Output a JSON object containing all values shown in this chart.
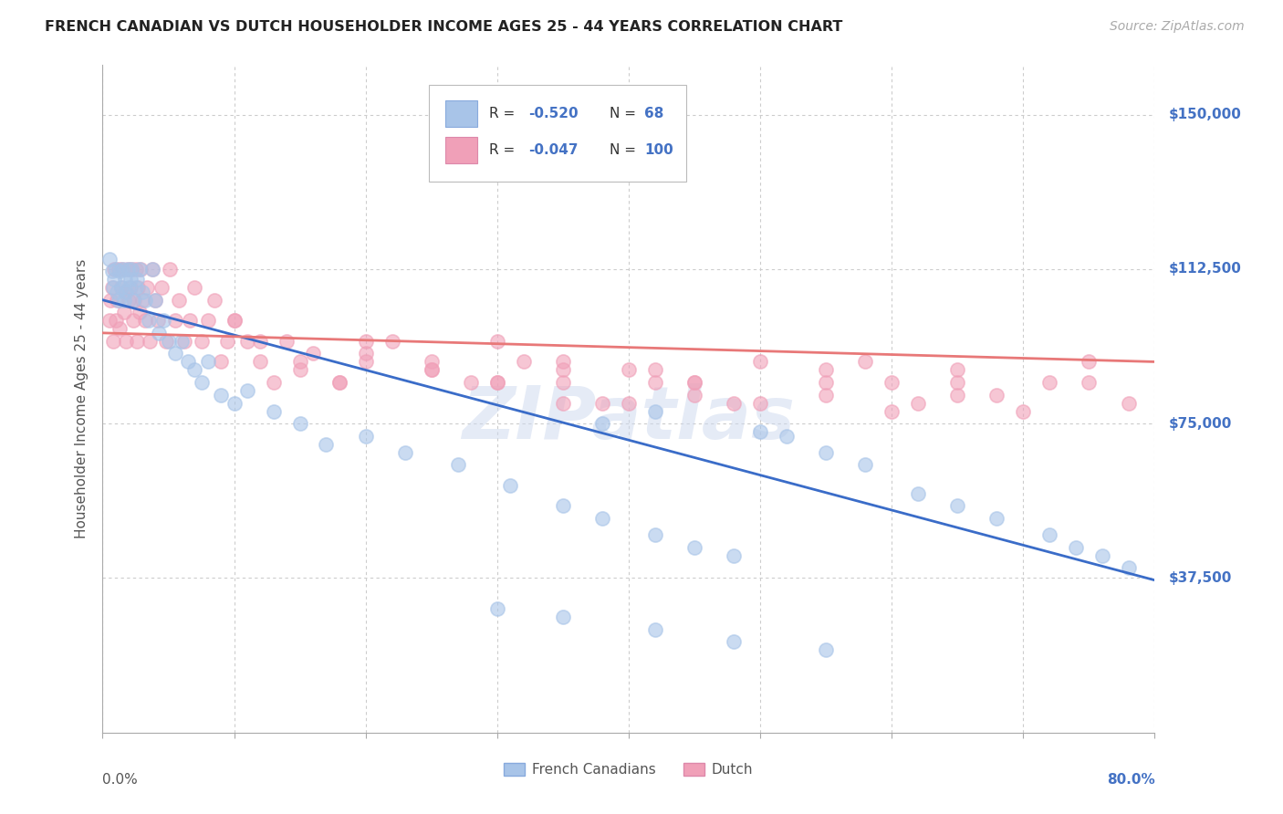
{
  "title": "FRENCH CANADIAN VS DUTCH HOUSEHOLDER INCOME AGES 25 - 44 YEARS CORRELATION CHART",
  "source": "Source: ZipAtlas.com",
  "ylabel": "Householder Income Ages 25 - 44 years",
  "ytick_labels": [
    "$37,500",
    "$75,000",
    "$112,500",
    "$150,000"
  ],
  "ytick_values": [
    37500,
    75000,
    112500,
    150000
  ],
  "xlim": [
    0.0,
    0.8
  ],
  "ylim": [
    0,
    162000
  ],
  "legend_R1": "-0.520",
  "legend_N1": "68",
  "legend_R2": "-0.047",
  "legend_N2": "100",
  "series1_label": "French Canadians",
  "series2_label": "Dutch",
  "series1_color": "#a8c4e8",
  "series2_color": "#f0a0b8",
  "line1_color": "#3a6cc8",
  "line2_color": "#e87878",
  "background_color": "#ffffff",
  "french_x": [
    0.005,
    0.007,
    0.008,
    0.009,
    0.01,
    0.011,
    0.012,
    0.013,
    0.014,
    0.015,
    0.016,
    0.017,
    0.018,
    0.019,
    0.02,
    0.021,
    0.022,
    0.023,
    0.025,
    0.026,
    0.028,
    0.03,
    0.032,
    0.035,
    0.038,
    0.04,
    0.043,
    0.046,
    0.05,
    0.055,
    0.06,
    0.065,
    0.07,
    0.075,
    0.08,
    0.09,
    0.1,
    0.11,
    0.13,
    0.15,
    0.17,
    0.2,
    0.23,
    0.27,
    0.31,
    0.35,
    0.38,
    0.42,
    0.45,
    0.48,
    0.38,
    0.42,
    0.5,
    0.52,
    0.55,
    0.58,
    0.62,
    0.65,
    0.68,
    0.72,
    0.74,
    0.76,
    0.78,
    0.3,
    0.35,
    0.42,
    0.48,
    0.55
  ],
  "french_y": [
    115000,
    112000,
    108000,
    110000,
    112500,
    107000,
    105000,
    112000,
    108000,
    112500,
    105000,
    110000,
    107000,
    112500,
    108000,
    110000,
    112500,
    105000,
    108000,
    110000,
    112500,
    107000,
    105000,
    100000,
    112500,
    105000,
    97000,
    100000,
    95000,
    92000,
    95000,
    90000,
    88000,
    85000,
    90000,
    82000,
    80000,
    83000,
    78000,
    75000,
    70000,
    72000,
    68000,
    65000,
    60000,
    55000,
    52000,
    48000,
    45000,
    43000,
    75000,
    78000,
    73000,
    72000,
    68000,
    65000,
    58000,
    55000,
    52000,
    48000,
    45000,
    43000,
    40000,
    30000,
    28000,
    25000,
    22000,
    20000
  ],
  "dutch_x": [
    0.005,
    0.006,
    0.007,
    0.008,
    0.009,
    0.01,
    0.011,
    0.012,
    0.013,
    0.014,
    0.015,
    0.016,
    0.017,
    0.018,
    0.019,
    0.02,
    0.021,
    0.022,
    0.023,
    0.024,
    0.025,
    0.026,
    0.027,
    0.028,
    0.029,
    0.03,
    0.032,
    0.034,
    0.036,
    0.038,
    0.04,
    0.042,
    0.045,
    0.048,
    0.051,
    0.055,
    0.058,
    0.062,
    0.066,
    0.07,
    0.075,
    0.08,
    0.085,
    0.09,
    0.095,
    0.1,
    0.11,
    0.12,
    0.13,
    0.14,
    0.15,
    0.16,
    0.18,
    0.2,
    0.22,
    0.25,
    0.28,
    0.32,
    0.35,
    0.38,
    0.42,
    0.45,
    0.5,
    0.55,
    0.58,
    0.62,
    0.65,
    0.68,
    0.72,
    0.75,
    0.78,
    0.3,
    0.35,
    0.42,
    0.48,
    0.55,
    0.6,
    0.65,
    0.7,
    0.75,
    0.2,
    0.25,
    0.3,
    0.35,
    0.4,
    0.45,
    0.5,
    0.55,
    0.6,
    0.65,
    0.1,
    0.12,
    0.15,
    0.18,
    0.2,
    0.25,
    0.3,
    0.35,
    0.4,
    0.45
  ],
  "dutch_y": [
    100000,
    105000,
    108000,
    95000,
    112500,
    100000,
    105000,
    112500,
    98000,
    108000,
    112500,
    102000,
    107000,
    95000,
    112500,
    105000,
    108000,
    112500,
    100000,
    105000,
    112500,
    95000,
    108000,
    102000,
    112500,
    105000,
    100000,
    108000,
    95000,
    112500,
    105000,
    100000,
    108000,
    95000,
    112500,
    100000,
    105000,
    95000,
    100000,
    108000,
    95000,
    100000,
    105000,
    90000,
    95000,
    100000,
    95000,
    90000,
    85000,
    95000,
    88000,
    92000,
    85000,
    90000,
    95000,
    88000,
    85000,
    90000,
    85000,
    80000,
    88000,
    85000,
    80000,
    85000,
    90000,
    80000,
    88000,
    82000,
    85000,
    90000,
    80000,
    95000,
    90000,
    85000,
    80000,
    88000,
    85000,
    82000,
    78000,
    85000,
    95000,
    90000,
    85000,
    88000,
    80000,
    85000,
    90000,
    82000,
    78000,
    85000,
    100000,
    95000,
    90000,
    85000,
    92000,
    88000,
    85000,
    80000,
    88000,
    82000
  ]
}
